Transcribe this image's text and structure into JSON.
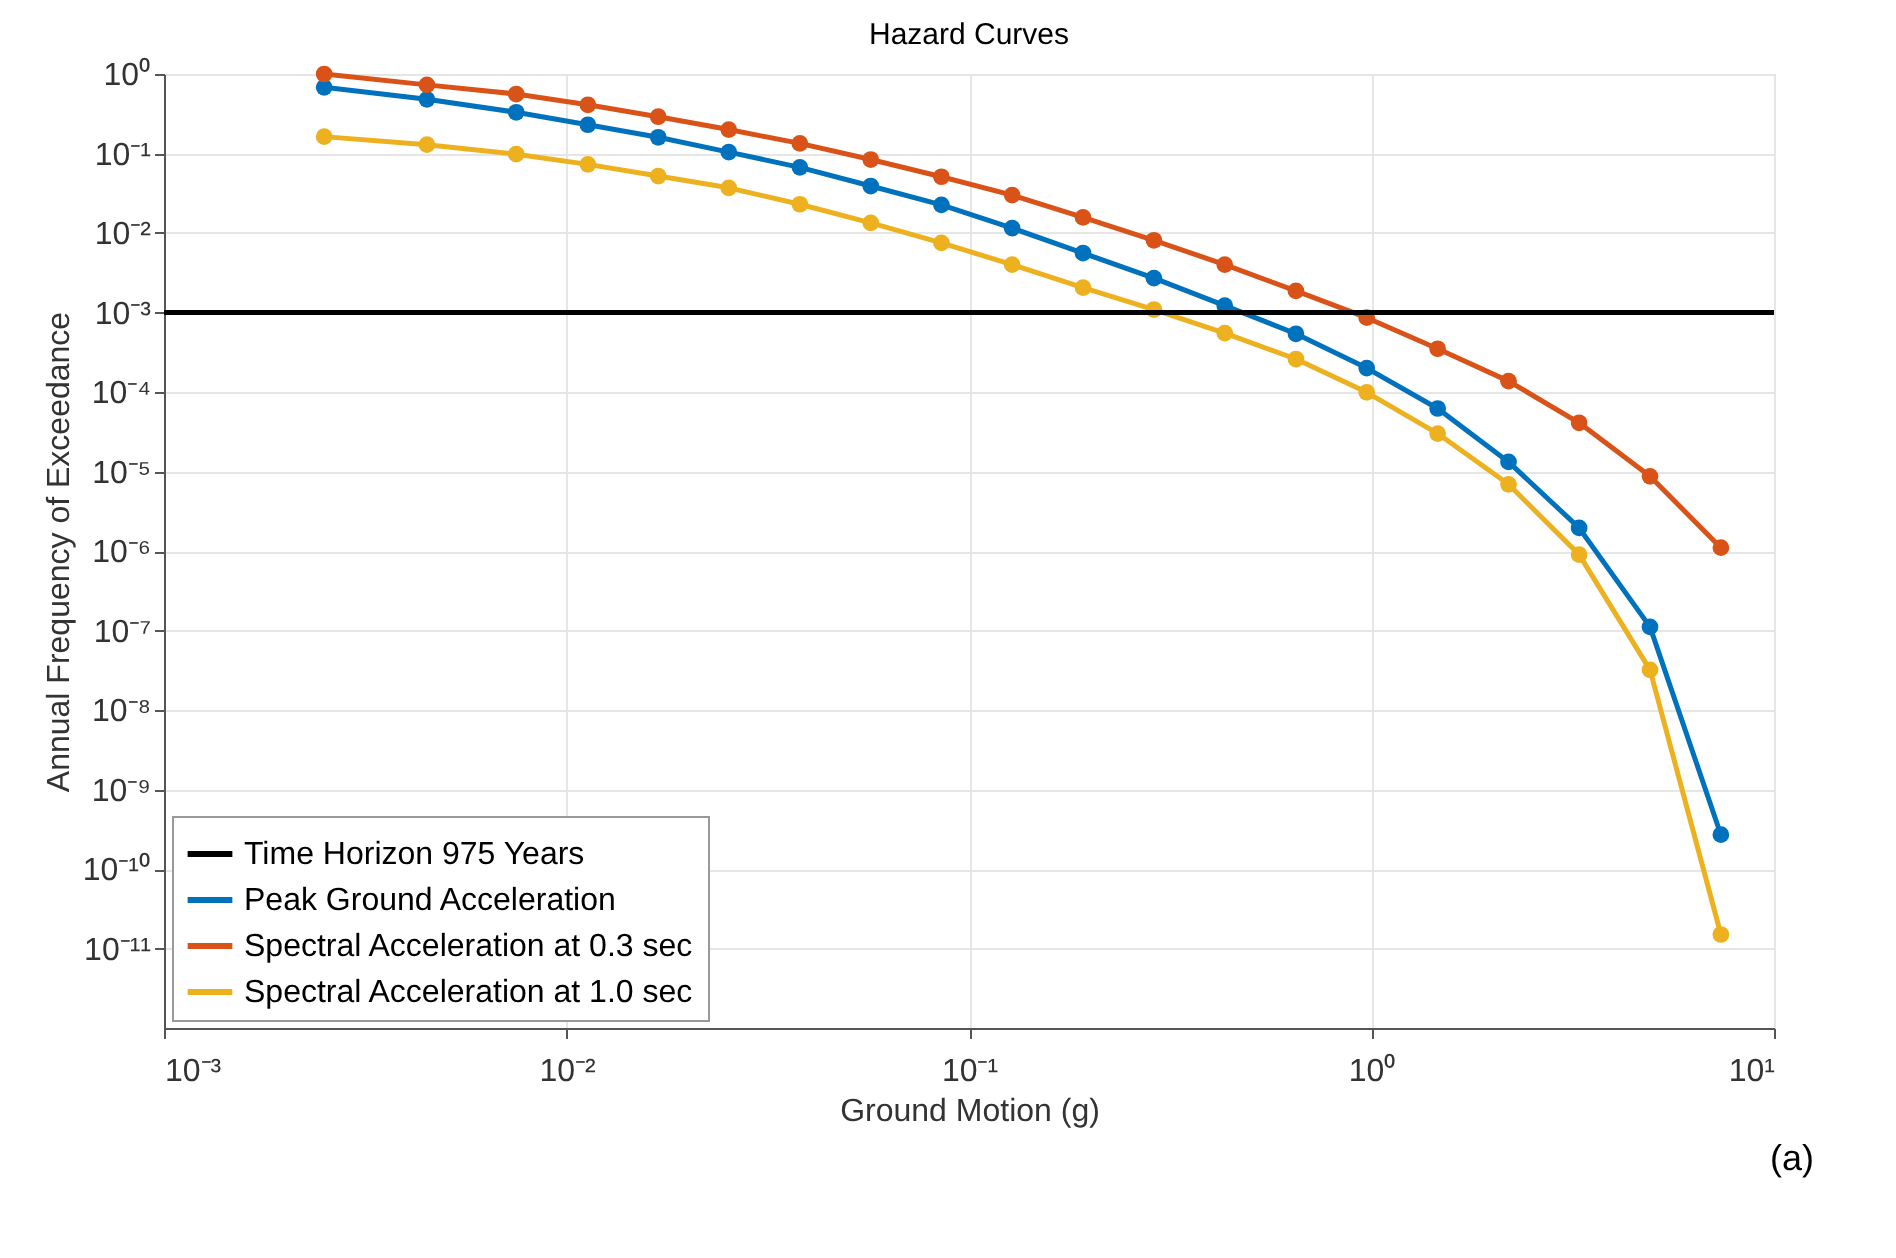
{
  "chart_data": {
    "type": "line",
    "title": "Hazard Curves",
    "xlabel": "Ground Motion (g)",
    "ylabel": "Annual Frequency of Exceedance",
    "log": "xy",
    "grid": true,
    "marker": "circle",
    "line_style": "solid",
    "legend": "bottom left",
    "x": [
      0.0025,
      0.0045,
      0.0075,
      0.0113,
      0.0169,
      0.0253,
      0.038,
      0.057,
      0.0854,
      0.128,
      0.192,
      0.288,
      0.432,
      0.649,
      0.973,
      1.46,
      2.19,
      3.28,
      4.92,
      7.38
    ],
    "xlim": [
      0.001,
      10
    ],
    "xticks": [
      {
        "value": 0.001,
        "label": "10⁻³"
      },
      {
        "value": 0.01,
        "label": "10⁻²"
      },
      {
        "value": 0.1,
        "label": "10⁻¹"
      },
      {
        "value": 1,
        "label": "10⁰"
      },
      {
        "value": 10,
        "label": "10¹"
      }
    ],
    "ylim": [
      1e-12,
      1
    ],
    "yticks": [
      {
        "value": 1,
        "label": "10⁰"
      },
      {
        "value": 0.1,
        "label": "10⁻¹"
      },
      {
        "value": 0.01,
        "label": "10⁻²"
      },
      {
        "value": 0.001,
        "label": "10⁻³"
      },
      {
        "value": 0.0001,
        "label": "10⁻⁴"
      },
      {
        "value": 1e-05,
        "label": "10⁻⁵"
      },
      {
        "value": 1e-06,
        "label": "10⁻⁶"
      },
      {
        "value": 1e-07,
        "label": "10⁻⁷"
      },
      {
        "value": 1e-08,
        "label": "10⁻⁸"
      },
      {
        "value": 1e-09,
        "label": "10⁻⁹"
      },
      {
        "value": 1e-10,
        "label": "10⁻¹⁰"
      },
      {
        "value": 1e-11,
        "label": "10⁻¹¹"
      }
    ],
    "ref_lines": [
      {
        "axis": "y",
        "value": 0.001,
        "label": "Time Horizon 975 Years",
        "color": "#000000",
        "line_style": "solid"
      }
    ],
    "series": [
      {
        "name": "Peak Ground Acceleration",
        "color": "#0072bd",
        "values": [
          0.68,
          0.48,
          0.33,
          0.23,
          0.16,
          0.104,
          0.067,
          0.039,
          0.0226,
          0.0115,
          0.0056,
          0.0027,
          0.00122,
          0.00054,
          0.0002,
          6.2e-05,
          1.32e-05,
          1.95e-06,
          1.11e-07,
          2.7e-10
        ]
      },
      {
        "name": "Spectral Acceleration at 0.3 sec",
        "color": "#d95319",
        "values": [
          1.0,
          0.73,
          0.56,
          0.41,
          0.29,
          0.2,
          0.134,
          0.084,
          0.051,
          0.03,
          0.0157,
          0.0081,
          0.004,
          0.00187,
          0.00086,
          0.00035,
          0.000137,
          4.1e-05,
          8.7e-06,
          1.1e-06
        ]
      },
      {
        "name": "Spectral Acceleration at 1.0 sec",
        "color": "#edb120",
        "values": [
          0.163,
          0.129,
          0.098,
          0.073,
          0.052,
          0.037,
          0.023,
          0.0134,
          0.0075,
          0.004,
          0.00206,
          0.00109,
          0.00055,
          0.00026,
          9.9e-05,
          3e-05,
          6.9e-06,
          9e-07,
          3.2e-08,
          1.5e-11
        ]
      }
    ],
    "annotations": [
      "(a)"
    ]
  }
}
